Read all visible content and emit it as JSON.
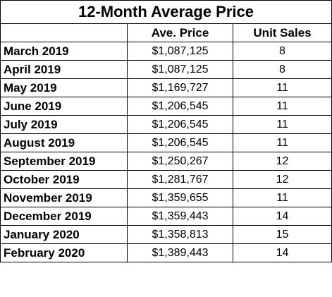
{
  "table": {
    "title": "12-Month Average Price",
    "headers": [
      "",
      "Ave. Price",
      "Unit Sales"
    ],
    "rows": [
      {
        "month": "March 2019",
        "price": "$1,087,125",
        "units": "8"
      },
      {
        "month": "April 2019",
        "price": "$1,087,125",
        "units": "8"
      },
      {
        "month": "May 2019",
        "price": "$1,169,727",
        "units": "11"
      },
      {
        "month": "June 2019",
        "price": "$1,206,545",
        "units": "11"
      },
      {
        "month": "July 2019",
        "price": "$1,206,545",
        "units": "11"
      },
      {
        "month": "August 2019",
        "price": "$1,206,545",
        "units": "11"
      },
      {
        "month": "September 2019",
        "price": "$1,250,267",
        "units": "12"
      },
      {
        "month": "October 2019",
        "price": "$1,281,767",
        "units": "12"
      },
      {
        "month": "November 2019",
        "price": "$1,359,655",
        "units": "11"
      },
      {
        "month": "December 2019",
        "price": "$1,359,443",
        "units": "14"
      },
      {
        "month": "January 2020",
        "price": "$1,358,813",
        "units": "15"
      },
      {
        "month": "February 2020",
        "price": "$1,389,443",
        "units": "14"
      }
    ]
  }
}
